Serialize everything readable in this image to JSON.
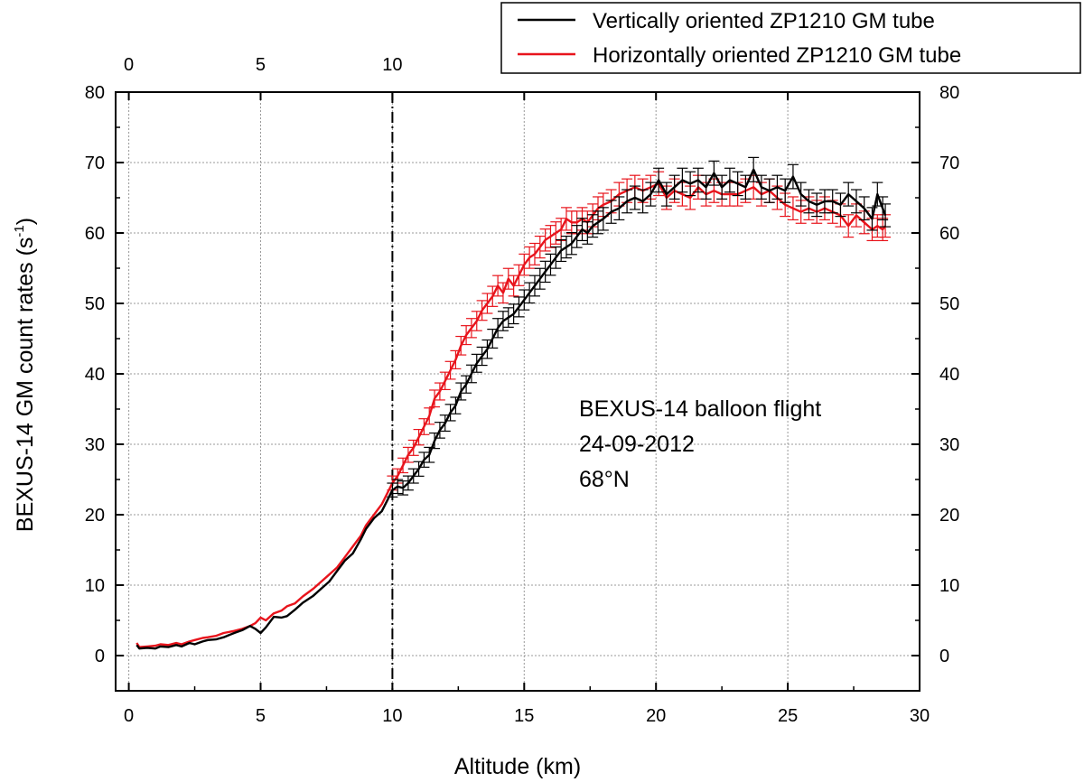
{
  "chart_data": {
    "type": "line",
    "xlabel": "Altitude (km)",
    "ylabel": "BEXUS-14 GM count rates (s",
    "ylabel_sup": "-1",
    "ylabel_close": ")",
    "xlim": [
      -0.5,
      30
    ],
    "ylim": [
      -5,
      80
    ],
    "top_xlim": [
      -0.5,
      30
    ],
    "x_ticks": [
      0,
      5,
      10,
      15,
      20,
      25,
      30
    ],
    "x_tick_labels": [
      "0",
      "5",
      "10",
      "15",
      "20",
      "25",
      "30"
    ],
    "top_x_ticks": [
      0,
      5,
      10
    ],
    "top_x_tick_labels": [
      "0",
      "5",
      "10"
    ],
    "y_ticks": [
      0,
      10,
      20,
      30,
      40,
      50,
      60,
      70,
      80
    ],
    "y_tick_labels": [
      "0",
      "10",
      "20",
      "30",
      "40",
      "50",
      "60",
      "70",
      "80"
    ],
    "grid": true,
    "vertical_line_x": 10,
    "annotation": [
      "BEXUS-14 balloon flight",
      "24-09-2012",
      "68°N"
    ],
    "legend_position": "top-right",
    "series": [
      {
        "name": "Vertically oriented ZP1210 GM tube",
        "color": "#000000",
        "x": [
          0.3,
          0.4,
          0.7,
          1.0,
          1.2,
          1.5,
          1.8,
          2.0,
          2.3,
          2.5,
          2.8,
          3.0,
          3.3,
          3.6,
          4.0,
          4.3,
          4.6,
          4.8,
          5.0,
          5.2,
          5.5,
          5.8,
          6.0,
          6.3,
          6.6,
          7.0,
          7.3,
          7.6,
          7.9,
          8.2,
          8.5,
          8.8,
          9.0,
          9.3,
          9.6,
          9.8,
          10.0,
          10.2,
          10.4,
          10.6,
          10.8,
          11.0,
          11.2,
          11.4,
          11.6,
          11.8,
          12.0,
          12.2,
          12.4,
          12.6,
          12.8,
          13.0,
          13.2,
          13.4,
          13.6,
          13.8,
          14.0,
          14.2,
          14.4,
          14.6,
          14.8,
          15.0,
          15.2,
          15.4,
          15.6,
          15.8,
          16.0,
          16.2,
          16.4,
          16.6,
          16.8,
          17.0,
          17.2,
          17.4,
          17.6,
          17.8,
          18.0,
          18.3,
          18.6,
          18.9,
          19.2,
          19.5,
          19.8,
          20.1,
          20.4,
          20.7,
          21.0,
          21.3,
          21.6,
          21.9,
          22.2,
          22.5,
          22.8,
          23.1,
          23.4,
          23.7,
          24.0,
          24.3,
          24.6,
          24.9,
          25.2,
          25.5,
          25.8,
          26.1,
          26.4,
          26.7,
          27.0,
          27.3,
          27.6,
          27.9,
          28.2,
          28.4,
          28.6,
          28.7
        ],
        "y": [
          1.5,
          1.0,
          1.1,
          1.0,
          1.3,
          1.2,
          1.5,
          1.3,
          1.8,
          1.6,
          2.0,
          2.2,
          2.3,
          2.6,
          3.2,
          3.6,
          4.2,
          3.8,
          3.2,
          4.0,
          5.5,
          5.4,
          5.6,
          6.5,
          7.5,
          8.5,
          9.5,
          10.5,
          12.0,
          13.5,
          14.5,
          16.5,
          18.0,
          19.5,
          20.5,
          22.0,
          23.5,
          24.0,
          23.8,
          24.5,
          25.5,
          26.5,
          27.8,
          28.5,
          30.5,
          32.0,
          33.0,
          34.5,
          35.5,
          37.5,
          38.5,
          40.0,
          41.5,
          42.5,
          43.5,
          45.0,
          46.5,
          47.5,
          48.0,
          48.5,
          49.5,
          50.5,
          51.5,
          52.5,
          53.5,
          54.5,
          55.5,
          56.5,
          57.5,
          58.0,
          58.5,
          59.5,
          60.5,
          60.0,
          61.0,
          61.5,
          62.0,
          63.0,
          63.5,
          64.5,
          65.0,
          64.5,
          65.5,
          67.5,
          65.5,
          66.5,
          67.5,
          67.0,
          67.5,
          66.5,
          68.5,
          66.5,
          67.5,
          67.0,
          66.5,
          69.0,
          66.5,
          66.0,
          66.5,
          66.0,
          68.0,
          65.5,
          64.5,
          64.0,
          64.5,
          64.5,
          64.0,
          65.5,
          64.5,
          63.5,
          62.0,
          65.5,
          63.5,
          62.5
        ]
      },
      {
        "name": "Horizontally oriented ZP1210 GM tube",
        "color": "#e8141c",
        "x": [
          0.3,
          0.4,
          0.7,
          1.0,
          1.2,
          1.5,
          1.8,
          2.0,
          2.3,
          2.5,
          2.8,
          3.0,
          3.3,
          3.6,
          4.0,
          4.3,
          4.6,
          4.8,
          5.0,
          5.2,
          5.5,
          5.8,
          6.0,
          6.3,
          6.6,
          7.0,
          7.3,
          7.6,
          7.9,
          8.2,
          8.5,
          8.8,
          9.0,
          9.3,
          9.6,
          9.8,
          10.0,
          10.2,
          10.4,
          10.6,
          10.8,
          11.0,
          11.2,
          11.4,
          11.6,
          11.8,
          12.0,
          12.2,
          12.4,
          12.6,
          12.8,
          13.0,
          13.2,
          13.4,
          13.6,
          13.8,
          14.0,
          14.2,
          14.4,
          14.6,
          14.8,
          15.0,
          15.2,
          15.4,
          15.6,
          15.8,
          16.0,
          16.2,
          16.4,
          16.6,
          16.8,
          17.0,
          17.2,
          17.4,
          17.6,
          17.8,
          18.0,
          18.3,
          18.6,
          18.9,
          19.2,
          19.5,
          19.8,
          20.1,
          20.4,
          20.7,
          21.0,
          21.3,
          21.6,
          21.9,
          22.2,
          22.5,
          22.8,
          23.1,
          23.4,
          23.7,
          24.0,
          24.3,
          24.6,
          24.9,
          25.2,
          25.5,
          25.8,
          26.1,
          26.4,
          26.7,
          27.0,
          27.3,
          27.6,
          27.9,
          28.2,
          28.4,
          28.6,
          28.7
        ],
        "y": [
          1.8,
          1.2,
          1.3,
          1.4,
          1.6,
          1.5,
          1.8,
          1.6,
          2.0,
          2.2,
          2.5,
          2.6,
          2.8,
          3.2,
          3.5,
          3.8,
          4.2,
          4.6,
          5.4,
          5.0,
          6.0,
          6.4,
          7.0,
          7.4,
          8.4,
          9.5,
          10.5,
          11.5,
          12.5,
          14.0,
          15.5,
          17.0,
          18.5,
          20.0,
          21.5,
          23.0,
          24.5,
          25.5,
          27.0,
          28.5,
          29.5,
          31.0,
          32.5,
          34.0,
          36.5,
          37.5,
          39.0,
          40.5,
          42.0,
          44.0,
          45.5,
          46.5,
          47.5,
          49.0,
          50.0,
          51.0,
          52.5,
          51.5,
          53.5,
          52.5,
          54.0,
          55.5,
          56.5,
          57.0,
          58.0,
          59.0,
          59.5,
          60.0,
          60.5,
          62.0,
          61.5,
          61.5,
          62.0,
          61.5,
          62.5,
          63.5,
          64.0,
          64.5,
          65.5,
          66.0,
          66.5,
          66.0,
          66.5,
          67.0,
          65.0,
          66.0,
          65.5,
          65.0,
          66.5,
          65.5,
          66.0,
          65.5,
          65.5,
          65.5,
          66.0,
          66.5,
          65.5,
          66.0,
          65.0,
          64.0,
          63.5,
          63.0,
          63.5,
          63.0,
          63.5,
          63.0,
          62.5,
          61.0,
          62.5,
          61.5,
          60.5,
          61.0,
          60.5,
          61.0
        ]
      }
    ]
  }
}
